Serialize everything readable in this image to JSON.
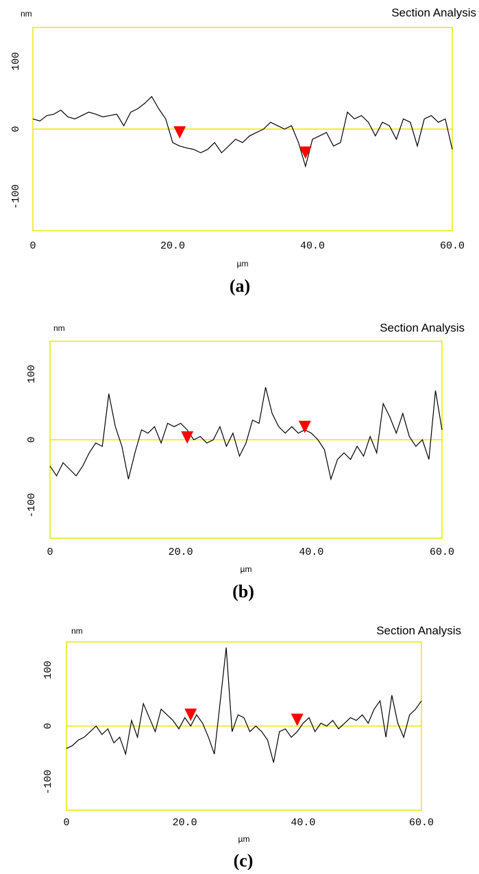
{
  "chart_data": [
    {
      "type": "line",
      "title": "Section Analysis",
      "y_label": "nm",
      "x_label": "µm",
      "caption": "(a)",
      "x": [
        0,
        1,
        2,
        3,
        4,
        5,
        6,
        7,
        8,
        9,
        10,
        11,
        12,
        13,
        14,
        15,
        16,
        17,
        18,
        19,
        20,
        21,
        22,
        23,
        24,
        25,
        26,
        27,
        28,
        29,
        30,
        31,
        32,
        33,
        34,
        35,
        36,
        37,
        38,
        39,
        40,
        41,
        42,
        43,
        44,
        45,
        46,
        47,
        48,
        49,
        50,
        51,
        52,
        53,
        54,
        55,
        56,
        57,
        58,
        59,
        60
      ],
      "values": [
        15,
        12,
        20,
        22,
        28,
        18,
        15,
        20,
        25,
        22,
        18,
        20,
        22,
        5,
        25,
        30,
        38,
        48,
        30,
        15,
        -20,
        -25,
        -28,
        -30,
        -35,
        -30,
        -20,
        -35,
        -25,
        -15,
        -20,
        -10,
        -5,
        0,
        10,
        5,
        0,
        5,
        -20,
        -55,
        -15,
        -10,
        -5,
        -25,
        -20,
        25,
        15,
        20,
        10,
        -10,
        10,
        5,
        -15,
        15,
        10,
        -25,
        15,
        20,
        10,
        15,
        -30
      ],
      "color": "#000000",
      "frame_color": "#e8e800",
      "zero_line": 0,
      "markers": {
        "x": [
          21,
          39
        ],
        "values": [
          -14,
          -44
        ],
        "color": "#ff0000"
      },
      "xlim": [
        0,
        60
      ],
      "ylim": [
        -150,
        150
      ],
      "xticks": [
        0,
        {
          "value": 20,
          "label": "20.0"
        },
        {
          "value": 40,
          "label": "40.0"
        },
        {
          "value": 60,
          "label": "60.0"
        }
      ],
      "yticks": [
        -100,
        0,
        100
      ]
    },
    {
      "type": "line",
      "title": "Section Analysis",
      "y_label": "nm",
      "x_label": "µm",
      "caption": "(b)",
      "x": [
        0,
        1,
        2,
        3,
        4,
        5,
        6,
        7,
        8,
        9,
        10,
        11,
        12,
        13,
        14,
        15,
        16,
        17,
        18,
        19,
        20,
        21,
        22,
        23,
        24,
        25,
        26,
        27,
        28,
        29,
        30,
        31,
        32,
        33,
        34,
        35,
        36,
        37,
        38,
        39,
        40,
        41,
        42,
        43,
        44,
        45,
        46,
        47,
        48,
        49,
        50,
        51,
        52,
        53,
        54,
        55,
        56,
        57,
        58,
        59,
        60
      ],
      "values": [
        -40,
        -55,
        -35,
        -45,
        -55,
        -40,
        -20,
        -5,
        -10,
        70,
        20,
        -10,
        -60,
        -20,
        15,
        10,
        20,
        -5,
        25,
        20,
        25,
        15,
        0,
        5,
        -5,
        0,
        20,
        -10,
        10,
        -25,
        -5,
        30,
        25,
        80,
        40,
        20,
        10,
        20,
        10,
        15,
        10,
        0,
        -15,
        -60,
        -30,
        -20,
        -30,
        -10,
        -25,
        5,
        -20,
        55,
        35,
        10,
        40,
        5,
        -10,
        0,
        -30,
        75,
        15
      ],
      "color": "#000000",
      "frame_color": "#e8e800",
      "zero_line": 0,
      "markers": {
        "x": [
          21,
          39
        ],
        "values": [
          -6,
          10
        ],
        "color": "#ff0000"
      },
      "xlim": [
        0,
        60
      ],
      "ylim": [
        -150,
        150
      ],
      "xticks": [
        0,
        {
          "value": 20,
          "label": "20.0"
        },
        {
          "value": 40,
          "label": "40.0"
        },
        {
          "value": 60,
          "label": "60.0"
        }
      ],
      "yticks": [
        -100,
        0,
        100
      ]
    },
    {
      "type": "line",
      "title": "Section Analysis",
      "y_label": "nm",
      "x_label": "µm",
      "caption": "(c)",
      "x": [
        0,
        1,
        2,
        3,
        4,
        5,
        6,
        7,
        8,
        9,
        10,
        11,
        12,
        13,
        14,
        15,
        16,
        17,
        18,
        19,
        20,
        21,
        22,
        23,
        24,
        25,
        26,
        27,
        28,
        29,
        30,
        31,
        32,
        33,
        34,
        35,
        36,
        37,
        38,
        39,
        40,
        41,
        42,
        43,
        44,
        45,
        46,
        47,
        48,
        49,
        50,
        51,
        52,
        53,
        54,
        55,
        56,
        57,
        58,
        59,
        60
      ],
      "values": [
        -40,
        -35,
        -25,
        -20,
        -10,
        0,
        -15,
        -5,
        -30,
        -20,
        -50,
        10,
        -20,
        40,
        15,
        -10,
        30,
        20,
        10,
        -5,
        15,
        0,
        20,
        5,
        -20,
        -50,
        45,
        140,
        -10,
        20,
        15,
        -10,
        0,
        -10,
        -25,
        -65,
        -10,
        -5,
        -20,
        -10,
        5,
        15,
        -10,
        5,
        0,
        10,
        -5,
        5,
        15,
        10,
        20,
        5,
        30,
        45,
        -20,
        55,
        5,
        -20,
        20,
        30,
        45
      ],
      "color": "#000000",
      "frame_color": "#e8e800",
      "zero_line": 0,
      "markers": {
        "x": [
          21,
          39
        ],
        "values": [
          9,
          0
        ],
        "color": "#ff0000"
      },
      "xlim": [
        0,
        60
      ],
      "ylim": [
        -150,
        150
      ],
      "xticks": [
        0,
        {
          "value": 20,
          "label": "20.0"
        },
        {
          "value": 40,
          "label": "40.0"
        },
        {
          "value": 60,
          "label": "60.0"
        }
      ],
      "yticks": [
        -100,
        0,
        100
      ]
    }
  ]
}
